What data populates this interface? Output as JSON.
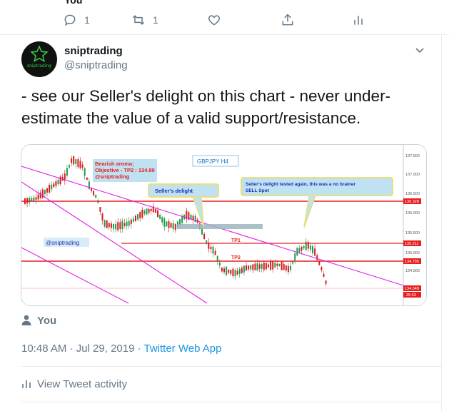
{
  "previous_tweet": {
    "cut_name": "You",
    "reply_count": "1",
    "retweet_count": "1"
  },
  "author": {
    "display_name": "sniptrading",
    "handle": "@sniptrading",
    "avatar_text": "sniptrading",
    "avatar_colors": {
      "background": "#0f1210",
      "star": "#3dcc48"
    }
  },
  "tweet": {
    "text": "- see our Seller's delight on this chart - never under-estimate the value of a valid support/resistance."
  },
  "chart": {
    "title": "GBPJPY H4",
    "watermark": "@sniptrading",
    "callout_bearish": [
      "Bearish aroma;",
      "Objective - TP2 : 134.80",
      "@sniptrading"
    ],
    "callout_seller": "Seller's delight",
    "callout_tested": [
      "Seller's delight tested again, this was a no brainer",
      "SELL Spot"
    ],
    "tp1_label": "TP1",
    "tp2_label": "TP2",
    "price_ticks": [
      "137.500",
      "137.000",
      "136.500",
      "136.000",
      "135.500",
      "135.000",
      "134.500"
    ],
    "price_tags": {
      "resistance": "136.328",
      "tp1": "135.211",
      "tp2": "134.795",
      "current": "134.049",
      "timer": "25:53"
    },
    "colors": {
      "bull": "#1d9d4c",
      "bear": "#d61d1d",
      "resistance": "#e81f1f",
      "channel": "#e31ee6",
      "zone": "#9db5bd",
      "callout_bg": "#bfe1f2",
      "callout_border": "#e8e07a"
    }
  },
  "retweeter": {
    "label": "You"
  },
  "meta": {
    "timestamp": "10:48 AM · Jul 29, 2019 · ",
    "source": "Twitter Web App"
  },
  "activity": {
    "label": "View Tweet activity"
  }
}
